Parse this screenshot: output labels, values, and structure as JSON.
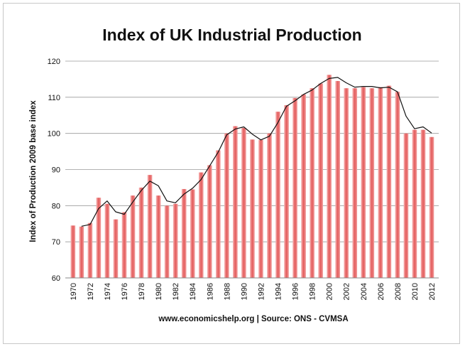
{
  "chart_data": {
    "type": "bar",
    "title": "Index of UK Industrial Production",
    "ylabel": "Index of Production 2009 base index",
    "xlabel": "",
    "source": "www.economicshelp.org | Source: ONS  - CVMSA",
    "ylim": [
      60,
      120
    ],
    "yticks": [
      "60",
      "70",
      "80",
      "90",
      "100",
      "110",
      "120"
    ],
    "xtick_labels": [
      "1970",
      "1972",
      "1974",
      "1976",
      "1978",
      "1980",
      "1982",
      "1984",
      "1986",
      "1988",
      "1990",
      "1992",
      "1994",
      "1996",
      "1998",
      "2000",
      "2002",
      "2004",
      "2006",
      "2008",
      "2010",
      "2012"
    ],
    "grid": true,
    "categories": [
      "1970",
      "1971",
      "1972",
      "1973",
      "1974",
      "1975",
      "1976",
      "1977",
      "1978",
      "1979",
      "1980",
      "1981",
      "1982",
      "1983",
      "1984",
      "1985",
      "1986",
      "1987",
      "1988",
      "1989",
      "1990",
      "1991",
      "1992",
      "1993",
      "1994",
      "1995",
      "1996",
      "1997",
      "1998",
      "1999",
      "2000",
      "2001",
      "2002",
      "2003",
      "2004",
      "2005",
      "2006",
      "2007",
      "2008",
      "2009",
      "2010",
      "2011",
      "2012"
    ],
    "series": [
      {
        "name": "Index of Production (bars)",
        "values": [
          74.5,
          74.2,
          75.2,
          82.2,
          80.5,
          76.2,
          78.2,
          82.8,
          85.0,
          88.5,
          82.8,
          80.0,
          80.5,
          84.6,
          84.5,
          89.2,
          91.2,
          95.3,
          100.0,
          102.0,
          101.5,
          98.3,
          98.2,
          100.0,
          106.0,
          107.8,
          109.8,
          110.8,
          112.5,
          113.8,
          116.2,
          114.5,
          112.5,
          112.5,
          112.8,
          112.5,
          112.8,
          113.2,
          111.5,
          100.0,
          101.0,
          101.0,
          99.0
        ],
        "color": "#e35a5a"
      },
      {
        "name": "Trend line",
        "values": [
          null,
          74.3,
          74.8,
          79.2,
          81.3,
          78.3,
          77.6,
          81.0,
          84.2,
          86.8,
          85.5,
          81.3,
          80.8,
          83.2,
          84.8,
          87.2,
          91.0,
          94.8,
          99.6,
          101.2,
          101.8,
          99.8,
          98.2,
          99.2,
          103.0,
          107.5,
          109.0,
          110.8,
          112.0,
          113.8,
          115.2,
          115.5,
          114.0,
          112.8,
          113.0,
          113.0,
          112.6,
          112.8,
          111.5,
          104.8,
          101.3,
          101.8,
          100.1
        ],
        "color": "#111111"
      }
    ]
  }
}
